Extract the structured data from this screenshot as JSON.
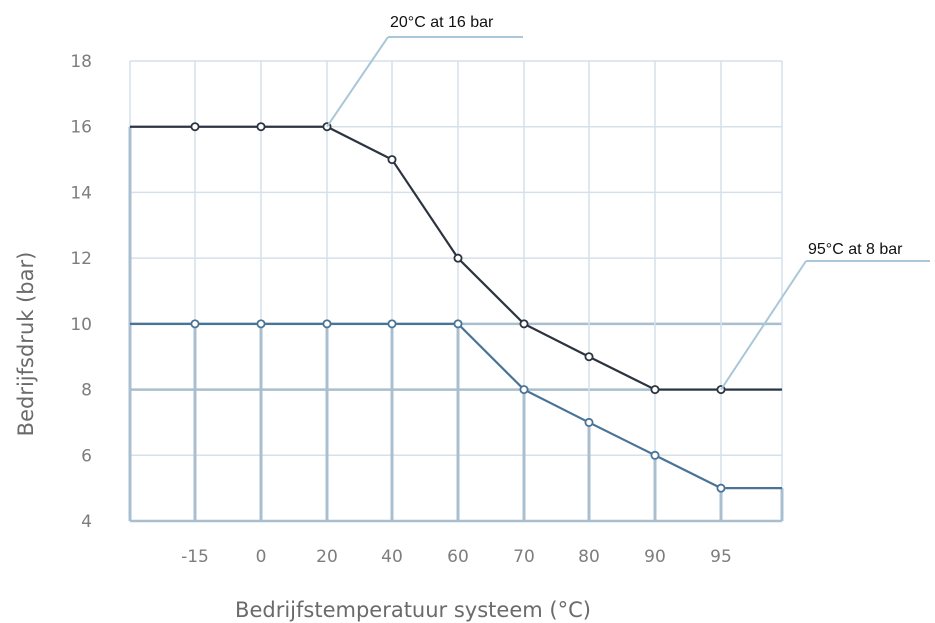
{
  "chart_data": {
    "type": "line",
    "xlabel": "Bedrijfstemperatuur systeem (°C)",
    "ylabel": "Bedrijfsdruk (bar)",
    "categories": [
      "-15",
      "0",
      "20",
      "40",
      "60",
      "70",
      "80",
      "90",
      "95"
    ],
    "ylim": [
      4,
      18
    ],
    "yticks": [
      "4",
      "6",
      "8",
      "10",
      "12",
      "14",
      "16",
      "18"
    ],
    "grid": true,
    "series": [
      {
        "color": "#2b3440",
        "values": [
          16,
          16,
          16,
          15,
          12,
          10,
          9,
          8,
          8
        ],
        "left_value": 16,
        "right_value": 8
      },
      {
        "color": "#4a7497",
        "values": [
          10,
          10,
          10,
          10,
          10,
          8,
          7,
          6,
          5
        ],
        "left_value": 10,
        "right_value": 5
      }
    ],
    "annotations": [
      {
        "text": "20°C at 16 bar",
        "series": 0,
        "point": 2
      },
      {
        "text": "95°C at 8 bar",
        "series": 0,
        "point": 8
      }
    ]
  },
  "colors": {
    "grid": "#d6e0ea",
    "gridline_strong": "#a9bfcf",
    "callout": "#a9c7d9"
  }
}
